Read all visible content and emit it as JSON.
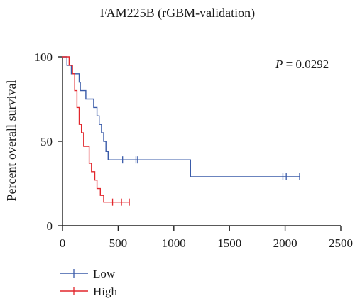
{
  "chart_data": {
    "type": "line",
    "title": "FAM225B (rGBM-validation)",
    "xlabel": "",
    "ylabel": "Percent overall survival",
    "xlim": [
      0,
      2500
    ],
    "ylim": [
      0,
      100
    ],
    "xticks": [
      "0",
      "500",
      "1000",
      "1500",
      "2000",
      "2500"
    ],
    "yticks": [
      "0",
      "50",
      "100"
    ],
    "annotation": {
      "italic": "P",
      "rest": " = 0.0292"
    },
    "legend_position": "bottom-left",
    "series": [
      {
        "name": "Low",
        "color": "#3a5ba9",
        "step": [
          [
            0,
            100
          ],
          [
            40,
            100
          ],
          [
            40,
            95
          ],
          [
            80,
            95
          ],
          [
            80,
            90
          ],
          [
            150,
            90
          ],
          [
            150,
            85
          ],
          [
            160,
            85
          ],
          [
            160,
            80
          ],
          [
            210,
            80
          ],
          [
            210,
            75
          ],
          [
            280,
            75
          ],
          [
            280,
            70
          ],
          [
            310,
            70
          ],
          [
            310,
            65
          ],
          [
            330,
            65
          ],
          [
            330,
            60
          ],
          [
            350,
            60
          ],
          [
            350,
            55
          ],
          [
            370,
            55
          ],
          [
            370,
            50
          ],
          [
            390,
            50
          ],
          [
            390,
            44
          ],
          [
            410,
            44
          ],
          [
            410,
            39
          ],
          [
            1150,
            39
          ],
          [
            1150,
            29
          ],
          [
            2130,
            29
          ]
        ],
        "censored": [
          [
            540,
            39
          ],
          [
            660,
            39
          ],
          [
            675,
            39
          ],
          [
            1980,
            29
          ],
          [
            2010,
            29
          ],
          [
            2130,
            29
          ]
        ]
      },
      {
        "name": "High",
        "color": "#e2262c",
        "step": [
          [
            0,
            100
          ],
          [
            60,
            100
          ],
          [
            60,
            95
          ],
          [
            90,
            95
          ],
          [
            90,
            90
          ],
          [
            110,
            90
          ],
          [
            110,
            80
          ],
          [
            130,
            80
          ],
          [
            130,
            70
          ],
          [
            150,
            70
          ],
          [
            150,
            60
          ],
          [
            170,
            60
          ],
          [
            170,
            55
          ],
          [
            190,
            55
          ],
          [
            190,
            47
          ],
          [
            240,
            47
          ],
          [
            240,
            37
          ],
          [
            260,
            37
          ],
          [
            260,
            32
          ],
          [
            290,
            32
          ],
          [
            290,
            27
          ],
          [
            310,
            27
          ],
          [
            310,
            22
          ],
          [
            340,
            22
          ],
          [
            340,
            18
          ],
          [
            370,
            18
          ],
          [
            370,
            14
          ],
          [
            600,
            14
          ]
        ],
        "censored": [
          [
            450,
            14
          ],
          [
            530,
            14
          ],
          [
            600,
            14
          ]
        ]
      }
    ]
  }
}
